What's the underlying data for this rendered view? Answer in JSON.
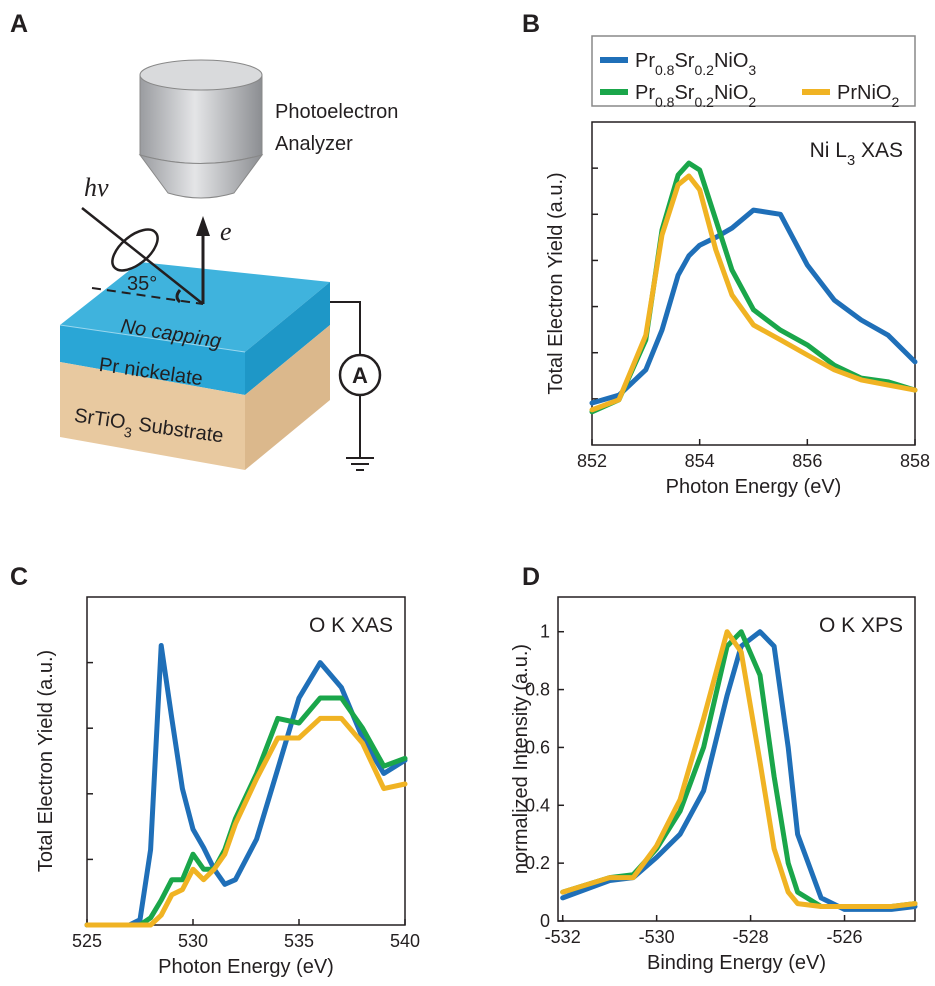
{
  "diagram": {
    "panel": "A",
    "labels": {
      "analyzer": [
        "Photoelectron",
        "Analyzer"
      ],
      "photon": "hν",
      "electron": "e",
      "angle": "35°",
      "capping": "No capping",
      "film": "Pr nickelate",
      "substrate": "SrTiO3 Substrate",
      "meter": "A"
    }
  },
  "chart_data": [
    {
      "type": "line",
      "panel": "B",
      "annotation": "Ni L3 XAS",
      "xlabel": "Photon Energy (eV)",
      "ylabel": "Total Electron Yield (a.u.)",
      "legend": "outside-top",
      "ytick_labels": false,
      "xlim": [
        852,
        858
      ],
      "xticks": [
        852,
        854,
        856,
        858
      ],
      "ylim": [
        0,
        7
      ],
      "yticks": [
        1,
        2,
        3,
        4,
        5,
        6
      ],
      "x": [
        852,
        852.5,
        853,
        853.3,
        853.6,
        853.8,
        854,
        854.3,
        854.6,
        855,
        855.5,
        856,
        856.5,
        857,
        857.5,
        858
      ],
      "series": [
        {
          "name": "Pr0.8Sr0.2NiO3",
          "color": "#1f6fb8",
          "values": [
            0.91,
            1.08,
            1.63,
            2.49,
            3.68,
            4.1,
            4.33,
            4.5,
            4.7,
            5.09,
            5.0,
            3.9,
            3.14,
            2.71,
            2.38,
            1.8
          ]
        },
        {
          "name": "Pr0.8Sr0.2NiO2",
          "color": "#1aa64a",
          "values": [
            0.72,
            0.98,
            2.28,
            4.66,
            5.85,
            6.11,
            5.96,
            4.88,
            3.79,
            2.93,
            2.49,
            2.17,
            1.73,
            1.45,
            1.37,
            1.19
          ]
        },
        {
          "name": "PrNiO2",
          "color": "#f0b323",
          "values": [
            0.76,
            0.98,
            2.38,
            4.55,
            5.64,
            5.83,
            5.53,
            4.23,
            3.25,
            2.6,
            2.28,
            1.95,
            1.63,
            1.41,
            1.3,
            1.19
          ]
        }
      ]
    },
    {
      "type": "line",
      "panel": "C",
      "annotation": "O K XAS",
      "xlabel": "Photon Energy (eV)",
      "ylabel": "Total Electron Yield (a.u.)",
      "ytick_labels": false,
      "xlim": [
        525,
        540
      ],
      "xticks": [
        525,
        530,
        535,
        540
      ],
      "ylim": [
        0,
        5
      ],
      "yticks": [
        1,
        2,
        3,
        4
      ],
      "x": [
        525,
        527,
        527.5,
        528,
        528.5,
        529,
        529.5,
        530,
        530.5,
        531,
        531.5,
        532,
        533,
        534,
        535,
        536,
        537,
        538,
        539,
        540
      ],
      "series": [
        {
          "name": "Pr0.8Sr0.2NiO3",
          "color": "#1f6fb8",
          "values": [
            0,
            0,
            0.08,
            1.15,
            4.26,
            3.15,
            2.08,
            1.46,
            1.18,
            0.85,
            0.62,
            0.69,
            1.31,
            2.38,
            3.46,
            4.0,
            3.62,
            2.85,
            2.31,
            2.51
          ]
        },
        {
          "name": "Pr0.8Sr0.2NiO2",
          "color": "#1aa64a",
          "values": [
            0,
            0,
            0,
            0.11,
            0.38,
            0.69,
            0.69,
            1.08,
            0.85,
            0.85,
            1.15,
            1.62,
            2.31,
            3.15,
            3.08,
            3.46,
            3.46,
            3.0,
            2.42,
            2.54
          ]
        },
        {
          "name": "PrNiO2",
          "color": "#f0b323",
          "values": [
            0,
            0,
            0,
            0,
            0.15,
            0.46,
            0.54,
            0.85,
            0.69,
            0.85,
            1.08,
            1.54,
            2.23,
            2.85,
            2.85,
            3.15,
            3.15,
            2.77,
            2.08,
            2.15
          ]
        }
      ]
    },
    {
      "type": "line",
      "panel": "D",
      "annotation": "O K XPS",
      "xlabel": "Binding Energy (eV)",
      "ylabel": "normalized Intensity (a.u.)",
      "ytick_labels": true,
      "xlim": [
        -532.1,
        -524.5
      ],
      "xticks": [
        -532,
        -530,
        -528,
        -526
      ],
      "ylim": [
        0,
        1.12
      ],
      "yticks": [
        0,
        0.2,
        0.4,
        0.6,
        0.8,
        1
      ],
      "x": [
        -532,
        -531,
        -530.5,
        -530,
        -529.5,
        -529,
        -528.5,
        -528.2,
        -527.8,
        -527.5,
        -527.2,
        -527,
        -526.5,
        -526,
        -525,
        -524.5
      ],
      "series": [
        {
          "name": "Pr0.8Sr0.2NiO3",
          "color": "#1f6fb8",
          "values": [
            0.08,
            0.14,
            0.15,
            0.22,
            0.3,
            0.45,
            0.78,
            0.95,
            1.0,
            0.95,
            0.6,
            0.3,
            0.08,
            0.04,
            0.04,
            0.05
          ]
        },
        {
          "name": "Pr0.8Sr0.2NiO2",
          "color": "#1aa64a",
          "values": [
            0.1,
            0.15,
            0.16,
            0.25,
            0.38,
            0.6,
            0.95,
            1.0,
            0.85,
            0.5,
            0.2,
            0.1,
            0.05,
            0.05,
            0.05,
            0.06
          ]
        },
        {
          "name": "PrNiO2",
          "color": "#f0b323",
          "values": [
            0.1,
            0.15,
            0.15,
            0.26,
            0.42,
            0.7,
            1.0,
            0.93,
            0.55,
            0.25,
            0.1,
            0.06,
            0.05,
            0.05,
            0.05,
            0.06
          ]
        }
      ]
    }
  ]
}
